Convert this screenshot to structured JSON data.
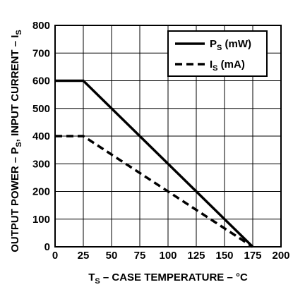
{
  "chart_data": {
    "type": "line",
    "xlabel": "T_S – CASE TEMPERATURE – °C",
    "xlabel_parts": {
      "main": "T",
      "sub": "S",
      "rest": " – CASE TEMPERATURE – °C"
    },
    "ylabel": "OUTPUT POWER – P_S, INPUT CURRENT – I_S",
    "ylabel_parts": {
      "a": "OUTPUT POWER – P",
      "a_sub": "S",
      "b": ", INPUT CURRENT – I",
      "b_sub": "S"
    },
    "xlim": [
      0,
      200
    ],
    "ylim": [
      0,
      800
    ],
    "x_ticks": [
      0,
      25,
      50,
      75,
      100,
      125,
      150,
      175,
      200
    ],
    "y_ticks": [
      0,
      100,
      200,
      300,
      400,
      500,
      600,
      700,
      800
    ],
    "grid": true,
    "legend_position": "top-right",
    "series": [
      {
        "name": "P_S (mW)",
        "name_main": "P",
        "name_sub": "S",
        "name_rest": " (mW)",
        "style": "solid",
        "x": [
          0,
          25,
          175
        ],
        "y": [
          600,
          600,
          0
        ]
      },
      {
        "name": "I_S (mA)",
        "name_main": "I",
        "name_sub": "S",
        "name_rest": " (mA)",
        "style": "dashed",
        "x": [
          0,
          25,
          175
        ],
        "y": [
          400,
          400,
          0
        ]
      }
    ]
  }
}
